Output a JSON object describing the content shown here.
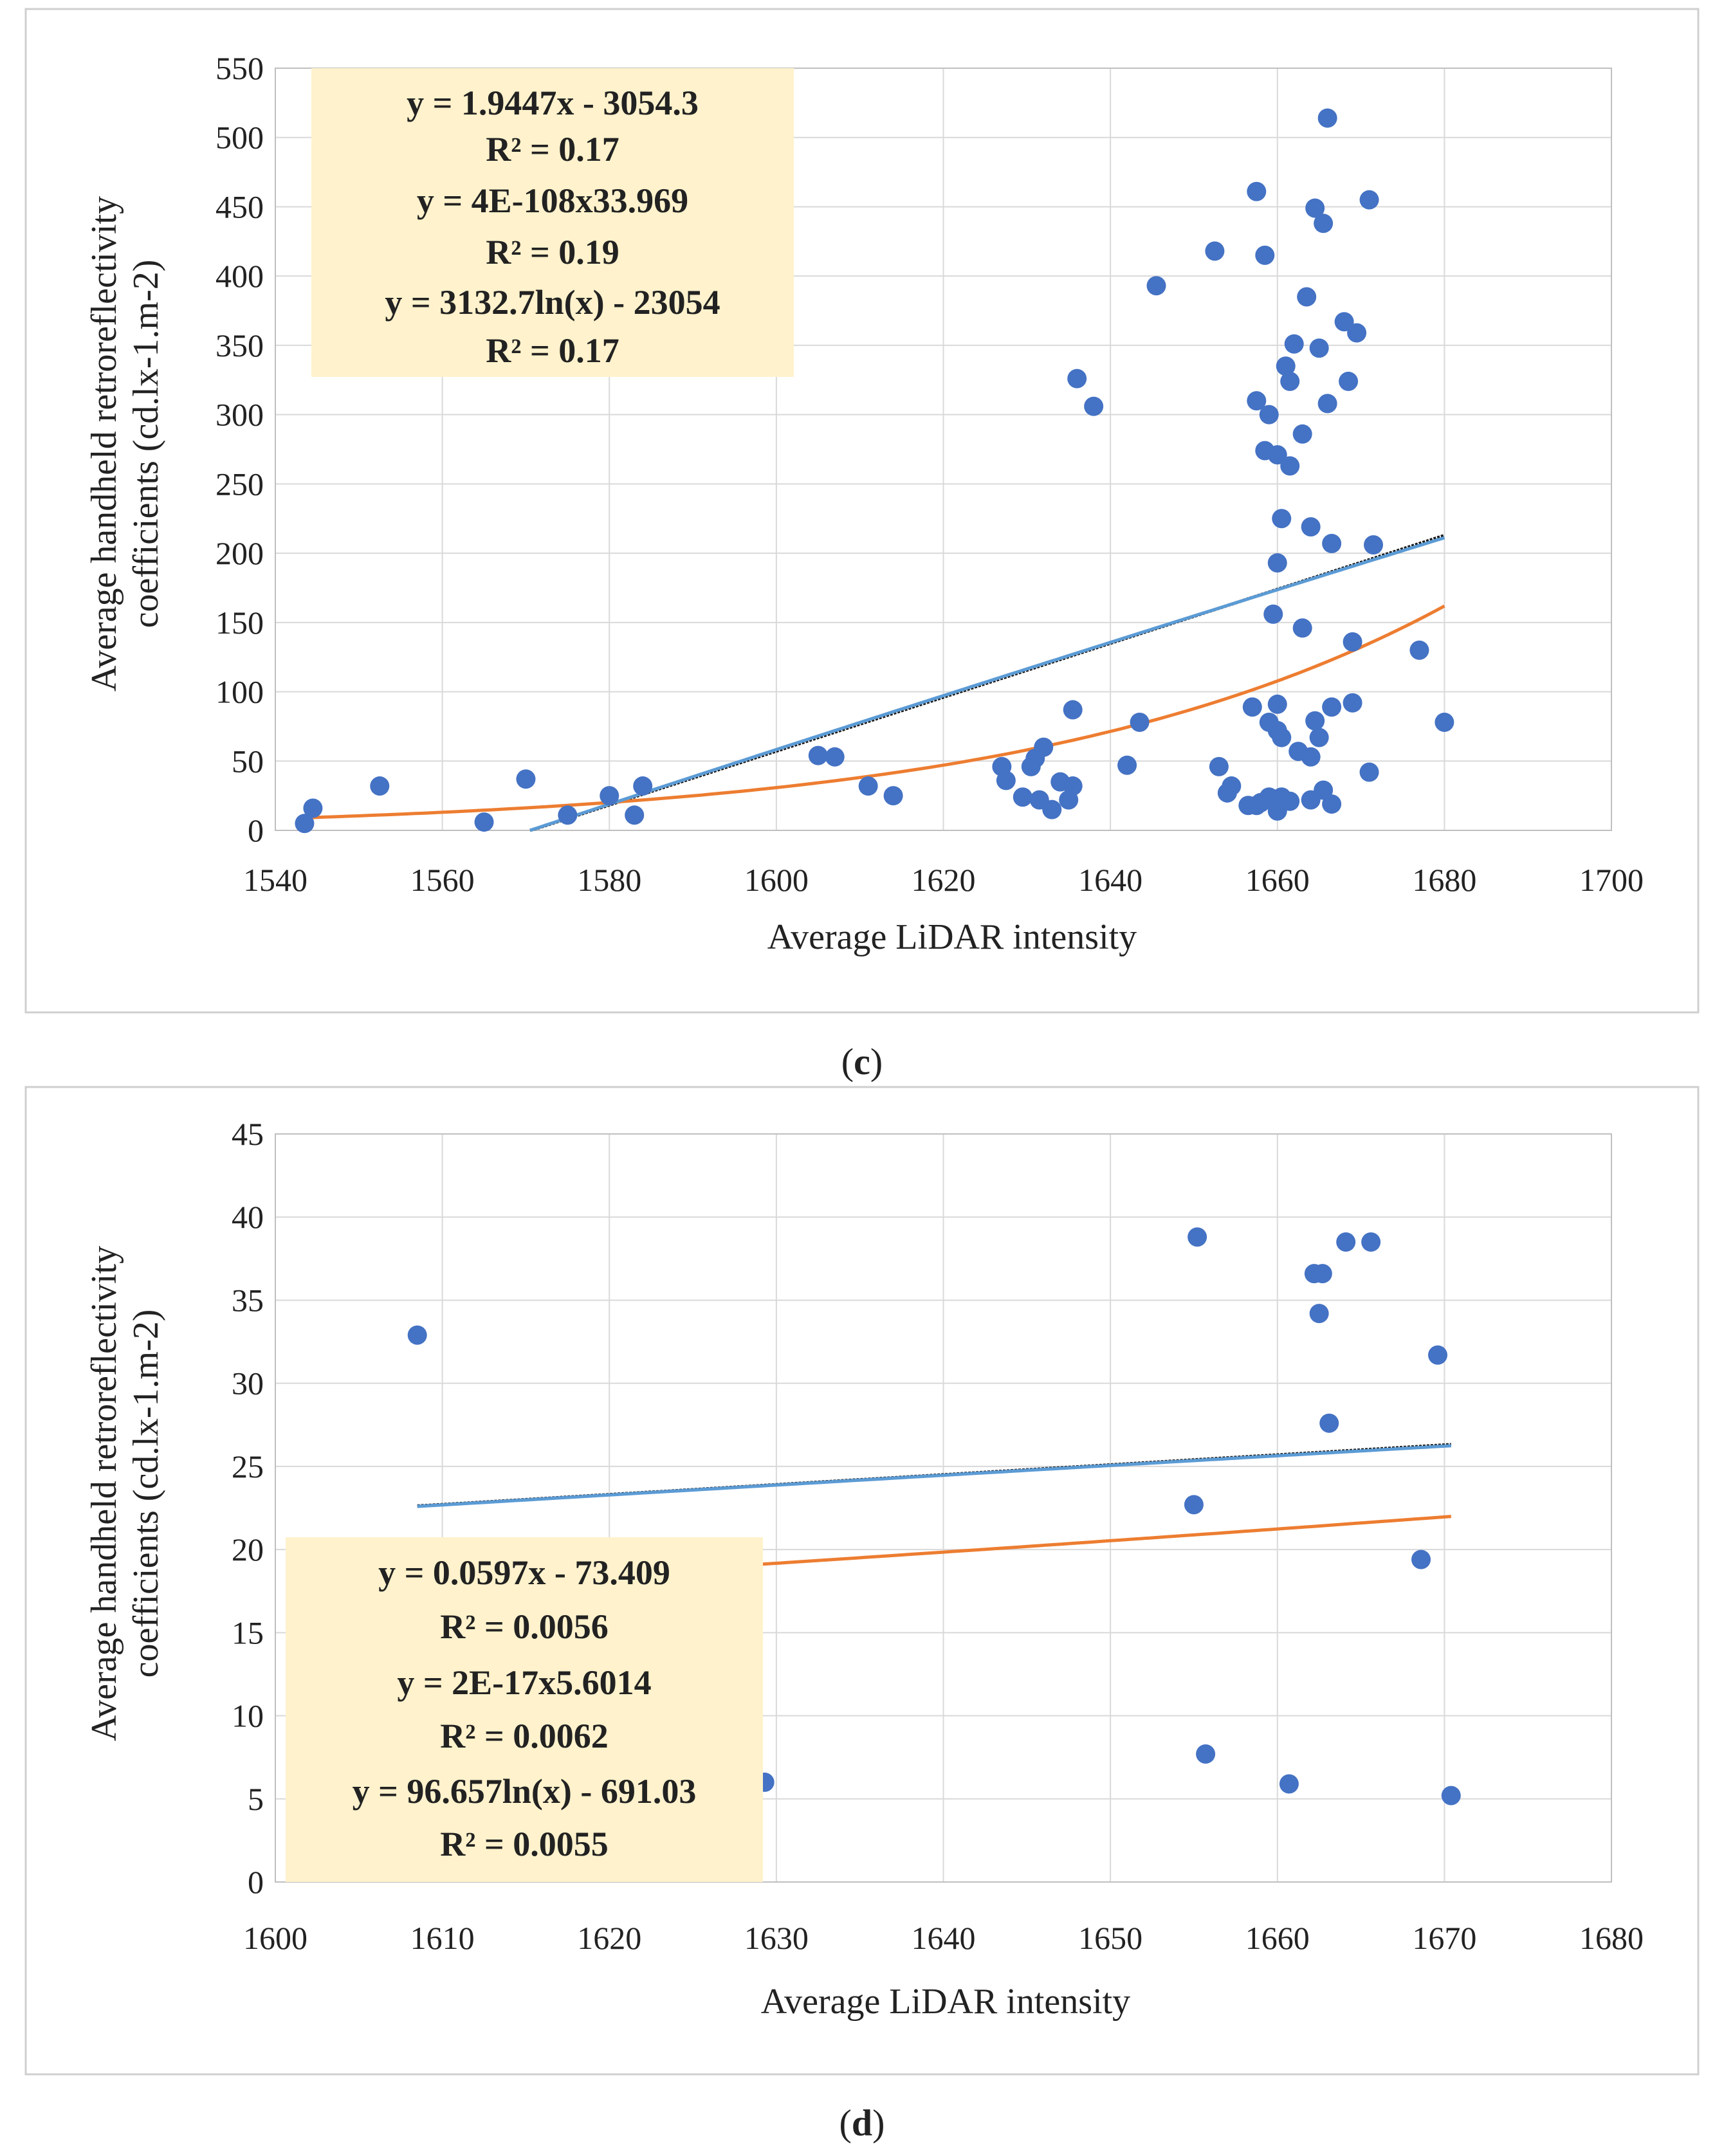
{
  "chart_data": [
    {
      "type": "scatter",
      "panel_label": "c",
      "xlabel": "Average LiDAR intensity",
      "ylabel_line1": "Average handheld retroreflectivity",
      "ylabel_line2": "coefficients (cd.lx-1.m-2)",
      "xlim": [
        1540,
        1700
      ],
      "ylim": [
        0,
        550
      ],
      "xticks": [
        1540,
        1560,
        1580,
        1600,
        1620,
        1640,
        1660,
        1680,
        1700
      ],
      "yticks": [
        0,
        50,
        100,
        150,
        200,
        250,
        300,
        350,
        400,
        450,
        500,
        550
      ],
      "grid": true,
      "point_color": "#4472C4",
      "points": [
        [
          1543.5,
          5
        ],
        [
          1544.5,
          16
        ],
        [
          1552.5,
          32
        ],
        [
          1565,
          6
        ],
        [
          1570,
          37
        ],
        [
          1575,
          11
        ],
        [
          1580,
          25
        ],
        [
          1583,
          11
        ],
        [
          1584,
          32
        ],
        [
          1605,
          54
        ],
        [
          1607,
          53
        ],
        [
          1611,
          32
        ],
        [
          1614,
          25
        ],
        [
          1627,
          46
        ],
        [
          1627.5,
          36
        ],
        [
          1629.5,
          24
        ],
        [
          1630.5,
          46
        ],
        [
          1631,
          52
        ],
        [
          1632,
          60
        ],
        [
          1631.5,
          22
        ],
        [
          1633,
          15
        ],
        [
          1634,
          35
        ],
        [
          1635,
          22
        ],
        [
          1635.5,
          32
        ],
        [
          1635.5,
          87
        ],
        [
          1636,
          326
        ],
        [
          1638,
          306
        ],
        [
          1642,
          47
        ],
        [
          1643.5,
          78
        ],
        [
          1645.5,
          393
        ],
        [
          1652.5,
          418
        ],
        [
          1653,
          46
        ],
        [
          1654,
          27
        ],
        [
          1654.5,
          32
        ],
        [
          1656.5,
          18
        ],
        [
          1657,
          89
        ],
        [
          1657.5,
          461
        ],
        [
          1657.5,
          310
        ],
        [
          1657.5,
          18
        ],
        [
          1658,
          20
        ],
        [
          1658.5,
          274
        ],
        [
          1658.5,
          415
        ],
        [
          1659,
          300
        ],
        [
          1659,
          78
        ],
        [
          1659,
          24
        ],
        [
          1659.5,
          156
        ],
        [
          1659.5,
          22
        ],
        [
          1660,
          193
        ],
        [
          1660,
          91
        ],
        [
          1660,
          72
        ],
        [
          1660,
          271
        ],
        [
          1660,
          14
        ],
        [
          1660.5,
          225
        ],
        [
          1660.5,
          67
        ],
        [
          1660.5,
          24
        ],
        [
          1661,
          335
        ],
        [
          1661.5,
          324
        ],
        [
          1661.5,
          263
        ],
        [
          1661.5,
          21
        ],
        [
          1662,
          351
        ],
        [
          1662.5,
          57
        ],
        [
          1663,
          286
        ],
        [
          1663,
          146
        ],
        [
          1663.5,
          385
        ],
        [
          1664,
          219
        ],
        [
          1664,
          53
        ],
        [
          1664,
          22
        ],
        [
          1664.5,
          449
        ],
        [
          1664.5,
          79
        ],
        [
          1665,
          67
        ],
        [
          1665,
          348
        ],
        [
          1665.5,
          438
        ],
        [
          1665.5,
          29
        ],
        [
          1666,
          308
        ],
        [
          1666,
          514
        ],
        [
          1666.5,
          207
        ],
        [
          1666.5,
          89
        ],
        [
          1666.5,
          19
        ],
        [
          1668,
          367
        ],
        [
          1668.5,
          324
        ],
        [
          1669,
          136
        ],
        [
          1669,
          92
        ],
        [
          1669.5,
          359
        ],
        [
          1671,
          455
        ],
        [
          1671,
          42
        ],
        [
          1671.5,
          206
        ],
        [
          1677,
          130
        ],
        [
          1680,
          78
        ]
      ],
      "trendlines": [
        {
          "name": "Linear",
          "equation": "y = 1.9447x - 3054.3",
          "r2": "R² = 0.17",
          "color": "#595959",
          "line_color": "#1a1a1a",
          "dashed": true,
          "kind": "linear",
          "a": 1.9447,
          "b": -3054.3,
          "x_from": 1570.5,
          "x_to": 1680
        },
        {
          "name": "Power",
          "equation": "y = 4E-108x33.969",
          "r2": "R² = 0.19",
          "color": "#FF0000",
          "line_color": "#ED7D31",
          "dashed": false,
          "kind": "power",
          "exp": 33.969,
          "x0": 1543,
          "y0": 9,
          "x_from": 1543,
          "x_to": 1680
        },
        {
          "name": "Logarithmic",
          "equation": "y = 3132.7ln(x) - 23054",
          "r2": "R² = 0.17",
          "color": "#2E75B6",
          "line_color": "#5B9BD5",
          "dashed": false,
          "kind": "log",
          "a": 3132.7,
          "b": -23054,
          "x_from": 1570.5,
          "x_to": 1680
        }
      ]
    },
    {
      "type": "scatter",
      "panel_label": "d",
      "xlabel": "Average LiDAR intensity",
      "ylabel_line1": "Average handheld retroreflectivity",
      "ylabel_line2": "coefficients (cd.lx-1.m-2)",
      "xlim": [
        1600,
        1680
      ],
      "ylim": [
        0,
        45
      ],
      "xticks": [
        1600,
        1610,
        1620,
        1630,
        1640,
        1650,
        1660,
        1670,
        1680
      ],
      "yticks": [
        0,
        5,
        10,
        15,
        20,
        25,
        30,
        35,
        40,
        45
      ],
      "grid": true,
      "point_color": "#4472C4",
      "points": [
        [
          1608.5,
          32.9
        ],
        [
          1629.3,
          6.0
        ],
        [
          1655.0,
          22.7
        ],
        [
          1655.2,
          38.8
        ],
        [
          1655.7,
          7.7
        ],
        [
          1660.7,
          5.9
        ],
        [
          1662.2,
          36.6
        ],
        [
          1662.5,
          34.2
        ],
        [
          1662.7,
          36.6
        ],
        [
          1663.1,
          27.6
        ],
        [
          1664.1,
          38.5
        ],
        [
          1665.6,
          38.5
        ],
        [
          1668.6,
          19.4
        ],
        [
          1669.6,
          31.7
        ],
        [
          1670.4,
          5.2
        ]
      ],
      "trendlines": [
        {
          "name": "Linear",
          "equation": "y = 0.0597x - 73.409",
          "r2": "R² = 0.0056",
          "color": "#595959",
          "line_color": "#1a1a1a",
          "dashed": true,
          "kind": "linear",
          "a": 0.0597,
          "b": -73.409,
          "x_from": 1608.5,
          "x_to": 1670.4
        },
        {
          "name": "Power",
          "equation": "y = 2E-17x5.6014",
          "r2": "R² = 0.0062",
          "color": "#FF0000",
          "line_color": "#ED7D31",
          "dashed": false,
          "kind": "power",
          "exp": 5.6014,
          "x0": 1608.5,
          "y0": 17.8,
          "x_from": 1608.5,
          "x_to": 1670.4
        },
        {
          "name": "Logarithmic",
          "equation": "y = 96.657ln(x) - 691.03",
          "r2": "R² = 0.0055",
          "color": "#2E75B6",
          "line_color": "#5B9BD5",
          "dashed": false,
          "kind": "log",
          "a": 96.657,
          "b": -691.03,
          "x_from": 1608.5,
          "x_to": 1670.4
        }
      ]
    }
  ]
}
